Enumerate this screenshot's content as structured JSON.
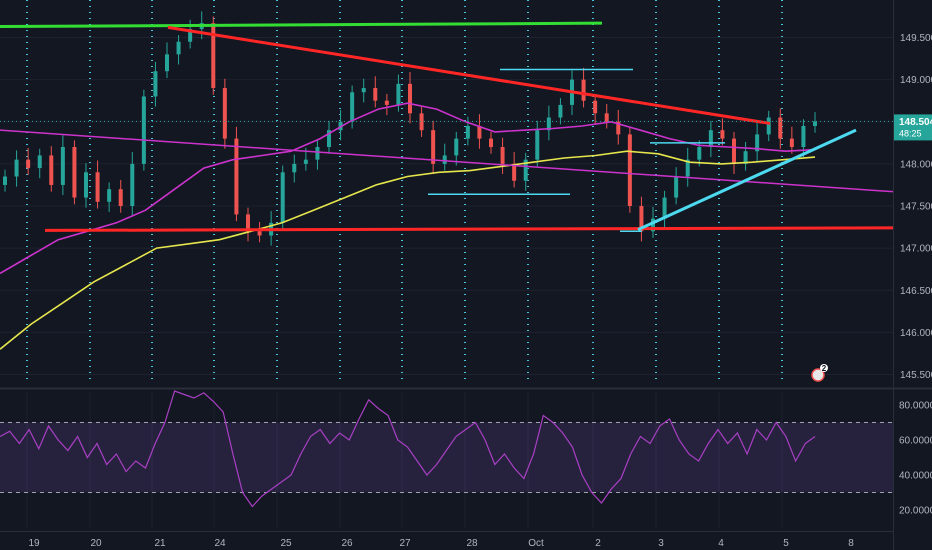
{
  "chart_data": [
    {
      "type": "line",
      "title": "",
      "x_tick_labels": [
        "19",
        "20",
        "21",
        "24",
        "25",
        "26",
        "27",
        "28",
        "Oct",
        "2",
        "3",
        "4",
        "5",
        "8"
      ],
      "y_tick_labels": [
        "149.500",
        "149.000",
        "148.500",
        "148.000",
        "147.500",
        "147.000",
        "146.500",
        "146.000",
        "145.500"
      ],
      "ylim": [
        145.4,
        149.85
      ],
      "grid": true,
      "current_price": "148.504",
      "countdown": "48:25",
      "price_series": {
        "name": "",
        "color": "#26a69a",
        "values": [
          147.85,
          148.05,
          147.95,
          148.1,
          147.75,
          148.2,
          147.6,
          147.9,
          147.55,
          147.7,
          147.5,
          148.0,
          148.8,
          149.1,
          149.3,
          149.45,
          149.6,
          149.67,
          148.9,
          148.3,
          147.4,
          147.2,
          147.15,
          147.3,
          147.9,
          148.0,
          148.05,
          148.2,
          148.4,
          148.5,
          148.85,
          148.9,
          148.75,
          148.7,
          148.95,
          148.6,
          148.4,
          148.0,
          148.1,
          148.3,
          148.45,
          148.3,
          148.2,
          148.0,
          147.8,
          148.05,
          148.4,
          148.55,
          148.7,
          149.0,
          148.75,
          148.6,
          148.5,
          148.35,
          147.5,
          147.2,
          147.35,
          147.6,
          147.85,
          148.05,
          148.2,
          148.4,
          148.3,
          148.0,
          148.15,
          148.35,
          148.55,
          148.3,
          148.2,
          148.45,
          148.504
        ]
      },
      "moving_averages": [
        {
          "name": "",
          "color": "#cc33cc",
          "values": [
            146.7,
            146.9,
            147.1,
            147.2,
            147.3,
            147.45,
            147.7,
            147.95,
            148.05,
            148.1,
            148.15,
            148.3,
            148.5,
            148.65,
            148.72,
            148.65,
            148.5,
            148.38,
            148.4,
            148.42,
            148.45,
            148.5,
            148.4,
            148.3,
            148.22,
            148.2,
            148.18,
            148.15,
            148.17
          ]
        },
        {
          "name": "",
          "color": "#e6e64d",
          "values": [
            145.8,
            146.1,
            146.35,
            146.6,
            146.8,
            147.0,
            147.05,
            147.1,
            147.2,
            147.3,
            147.45,
            147.6,
            147.75,
            147.85,
            147.9,
            147.92,
            147.97,
            148.02,
            148.07,
            148.1,
            148.15,
            148.12,
            148.02,
            148.0,
            148.02,
            148.05,
            148.08
          ]
        }
      ],
      "annotation_colors": {
        "resistance": "#ff2626",
        "trend": "#ff2626",
        "top": "#33dd33",
        "channel": "#cc33cc",
        "rising": "#4dd9f0",
        "ticks": "#4dd9f0"
      }
    },
    {
      "type": "line",
      "title": "",
      "y_tick_labels": [
        "80.0000",
        "60.0000",
        "40.0000",
        "20.0000"
      ],
      "ylim": [
        15,
        90
      ],
      "overbought": 70,
      "oversold": 30,
      "band_color": "#7e57c2",
      "line_color": "#a93fc4",
      "values": [
        62,
        65,
        58,
        66,
        55,
        68,
        60,
        54,
        62,
        50,
        58,
        46,
        52,
        42,
        48,
        44,
        58,
        70,
        88,
        86,
        84,
        87,
        82,
        76,
        52,
        30,
        22,
        28,
        32,
        36,
        40,
        52,
        62,
        66,
        58,
        64,
        60,
        72,
        83,
        78,
        74,
        60,
        56,
        48,
        40,
        46,
        54,
        62,
        66,
        70,
        60,
        46,
        52,
        44,
        38,
        52,
        74,
        70,
        64,
        56,
        40,
        30,
        24,
        32,
        38,
        52,
        62,
        58,
        68,
        72,
        60,
        52,
        48,
        58,
        66,
        58,
        64,
        52,
        66,
        60,
        70,
        62,
        48,
        58,
        62
      ]
    }
  ],
  "watermark_badge": "2"
}
